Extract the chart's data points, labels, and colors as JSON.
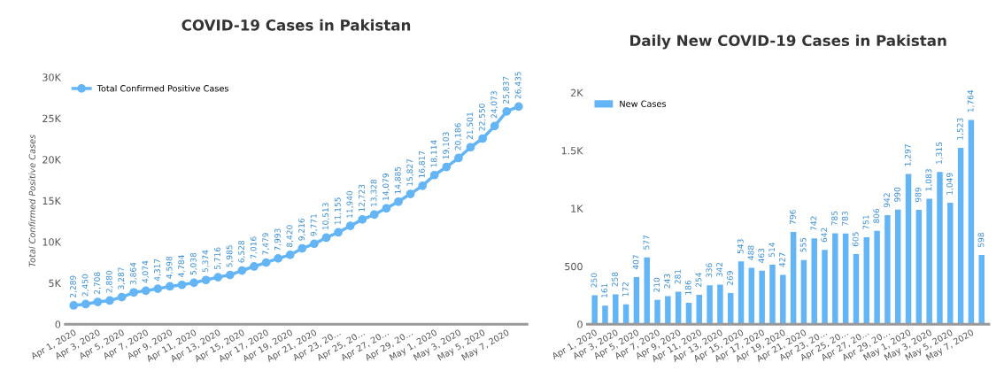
{
  "chart_data": [
    {
      "type": "line",
      "title": "COVID-19 Cases in Pakistan",
      "ylabel": "Total Confirmed Positive Cases",
      "categories": [
        "Apr 1, 2020",
        null,
        "Apr 3, 2020",
        null,
        "Apr 5, 2020",
        null,
        "Apr 7, 2020",
        null,
        "Apr 9, 2020",
        null,
        "Apr 11, 2020",
        null,
        "Apr 13, 2020",
        null,
        "Apr 15, 2020",
        null,
        "Apr 17, 2020",
        null,
        "Apr 19, 2020",
        null,
        "Apr 21, 2020",
        null,
        "Apr 23, 20…",
        null,
        "Apr 25, 20…",
        null,
        "Apr 27, 20…",
        null,
        "Apr 29, 20…",
        null,
        "May 1, 2020",
        null,
        "May 3, 2020",
        null,
        "May 5, 2020",
        null,
        "May 7, 2020",
        null
      ],
      "series": [
        {
          "name": "Total Confirmed Positive Cases",
          "color": "#64b5f6",
          "values": [
            2289,
            2450,
            2708,
            2880,
            3287,
            3864,
            4074,
            4317,
            4598,
            4784,
            5038,
            5374,
            5716,
            5985,
            6528,
            7016,
            7479,
            7993,
            8420,
            9216,
            9771,
            10513,
            11155,
            11940,
            12723,
            13328,
            14079,
            14885,
            15827,
            16817,
            18114,
            19103,
            20186,
            21501,
            22550,
            24073,
            25837,
            26435
          ],
          "value_labels": [
            "2,289",
            "2,450",
            "2,708",
            "2,880",
            "3,287",
            "3,864",
            "4,074",
            "4,317",
            "4,598",
            "4,784",
            "5,038",
            "5,374",
            "5,716",
            "5,985",
            "6,528",
            "7,016",
            "7,479",
            "7,993",
            "8,420",
            "9,216",
            "9,771",
            "10,513",
            "11,155",
            "11,940",
            "12,723",
            "13,328",
            "14,079",
            "14,885",
            "15,827",
            "16,817",
            "18,114",
            "19,103",
            "20,186",
            "21,501",
            "22,550",
            "24,073",
            "25,837",
            "26,435"
          ]
        }
      ],
      "ylim": [
        0,
        30000
      ],
      "yticks": [
        {
          "value": 0,
          "label": "0"
        },
        {
          "value": 5000,
          "label": "5K"
        },
        {
          "value": 10000,
          "label": "10K"
        },
        {
          "value": 15000,
          "label": "15K"
        },
        {
          "value": 20000,
          "label": "20K"
        },
        {
          "value": 25000,
          "label": "25K"
        },
        {
          "value": 30000,
          "label": "30K"
        }
      ],
      "marker": "circle",
      "line_style": "solid",
      "legend": "top left",
      "grid": false
    },
    {
      "type": "bar",
      "title": "Daily New COVID-19 Cases in Pakistan",
      "categories": [
        "Apr 1, 2020",
        null,
        "Apr 3, 2020",
        null,
        "Apr 5, 2020",
        null,
        "Apr 7, 2020",
        null,
        "Apr 9, 2020",
        null,
        "Apr 11, 2020",
        null,
        "Apr 13, 2020",
        null,
        "Apr 15, 2020",
        null,
        "Apr 17, 2020",
        null,
        "Apr 19, 2020",
        null,
        "Apr 21, 2020",
        null,
        "Apr 23, 20…",
        null,
        "Apr 25, 20…",
        null,
        "Apr 27, 20…",
        null,
        "Apr 29, 20…",
        null,
        "May 1, 2020",
        null,
        "May 3, 2020",
        null,
        "May 5, 2020",
        null,
        "May 7, 2020",
        null
      ],
      "series": [
        {
          "name": "New Cases",
          "color": "#64b5f6",
          "values": [
            250,
            161,
            258,
            172,
            407,
            577,
            210,
            243,
            281,
            186,
            254,
            336,
            342,
            269,
            543,
            488,
            463,
            514,
            427,
            796,
            555,
            742,
            642,
            785,
            783,
            605,
            751,
            806,
            942,
            990,
            1297,
            989,
            1083,
            1315,
            1049,
            1523,
            1764,
            598
          ],
          "value_labels": [
            "250",
            "161",
            "258",
            "172",
            "407",
            "577",
            "210",
            "243",
            "281",
            "186",
            "254",
            "336",
            "342",
            "269",
            "543",
            "488",
            "463",
            "514",
            "427",
            "796",
            "555",
            "742",
            "642",
            "785",
            "783",
            "605",
            "751",
            "806",
            "942",
            "990",
            "1,297",
            "989",
            "1,083",
            "1,315",
            "1,049",
            "1,523",
            "1,764",
            "598"
          ]
        }
      ],
      "ylim": [
        0,
        2000
      ],
      "yticks": [
        {
          "value": 0,
          "label": "0"
        },
        {
          "value": 500,
          "label": "500"
        },
        {
          "value": 1000,
          "label": "1K"
        },
        {
          "value": 1500,
          "label": "1.5K"
        },
        {
          "value": 2000,
          "label": "2K"
        }
      ],
      "legend": "top left",
      "grid": false
    }
  ]
}
